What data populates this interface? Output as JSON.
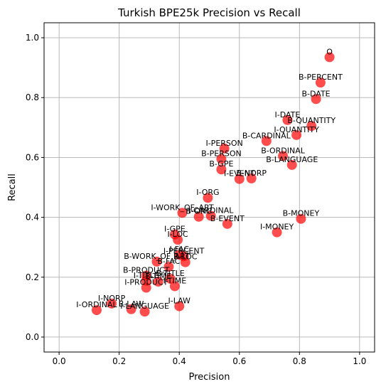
{
  "chart_data": {
    "type": "scatter",
    "title": "Turkish BPE25k Precision vs Recall",
    "xlabel": "Precision",
    "ylabel": "Recall",
    "xlim": [
      -0.05,
      1.05
    ],
    "ylim": [
      -0.05,
      1.05
    ],
    "xticks": [
      "0.0",
      "0.2",
      "0.4",
      "0.6",
      "0.8",
      "1.0"
    ],
    "yticks": [
      "0.0",
      "0.2",
      "0.4",
      "0.6",
      "0.8",
      "1.0"
    ],
    "grid": true,
    "marker_color": "#ff0000",
    "points": [
      {
        "label": "O",
        "x": 0.9,
        "y": 0.935
      },
      {
        "label": "B-PERCENT",
        "x": 0.87,
        "y": 0.85
      },
      {
        "label": "B-DATE",
        "x": 0.855,
        "y": 0.795
      },
      {
        "label": "I-DATE",
        "x": 0.76,
        "y": 0.725
      },
      {
        "label": "B-QUANTITY",
        "x": 0.84,
        "y": 0.705
      },
      {
        "label": "I-QUANTITY",
        "x": 0.79,
        "y": 0.675
      },
      {
        "label": "B-CARDINAL",
        "x": 0.69,
        "y": 0.655
      },
      {
        "label": "I-PERSON",
        "x": 0.55,
        "y": 0.63
      },
      {
        "label": "B-PERSON",
        "x": 0.54,
        "y": 0.595
      },
      {
        "label": "B-ORDINAL",
        "x": 0.745,
        "y": 0.605
      },
      {
        "label": "B-GPE",
        "x": 0.54,
        "y": 0.56
      },
      {
        "label": "B-LANGUAGE",
        "x": 0.775,
        "y": 0.575
      },
      {
        "label": "B-NORP",
        "x": 0.64,
        "y": 0.53
      },
      {
        "label": "I-EVENT",
        "x": 0.6,
        "y": 0.528
      },
      {
        "label": "I-ORG",
        "x": 0.495,
        "y": 0.465
      },
      {
        "label": "I-WORK_OF_ART",
        "x": 0.41,
        "y": 0.415
      },
      {
        "label": "I-CARDINAL",
        "x": 0.505,
        "y": 0.405
      },
      {
        "label": "B-ORG",
        "x": 0.465,
        "y": 0.402
      },
      {
        "label": "B-MONEY",
        "x": 0.805,
        "y": 0.395
      },
      {
        "label": "B-EVENT",
        "x": 0.56,
        "y": 0.378
      },
      {
        "label": "I-MONEY",
        "x": 0.725,
        "y": 0.35
      },
      {
        "label": "I-GPE",
        "x": 0.385,
        "y": 0.343
      },
      {
        "label": "I-LOC",
        "x": 0.395,
        "y": 0.325
      },
      {
        "label": "I-FAC",
        "x": 0.4,
        "y": 0.275
      },
      {
        "label": "I-PERCENT",
        "x": 0.415,
        "y": 0.27
      },
      {
        "label": "B-LOC",
        "x": 0.42,
        "y": 0.25
      },
      {
        "label": "B-WORK_OF_ART",
        "x": 0.325,
        "y": 0.252
      },
      {
        "label": "B-FAC",
        "x": 0.365,
        "y": 0.235
      },
      {
        "label": "B-PRODUCT",
        "x": 0.29,
        "y": 0.205
      },
      {
        "label": "B-TITLE",
        "x": 0.37,
        "y": 0.195
      },
      {
        "label": "I-TITLE",
        "x": 0.29,
        "y": 0.188
      },
      {
        "label": "B-TIME",
        "x": 0.33,
        "y": 0.185
      },
      {
        "label": "I-TIME",
        "x": 0.385,
        "y": 0.17
      },
      {
        "label": "I-PRODUCT",
        "x": 0.29,
        "y": 0.165
      },
      {
        "label": "I-NORP",
        "x": 0.175,
        "y": 0.112
      },
      {
        "label": "I-LAW",
        "x": 0.4,
        "y": 0.103
      },
      {
        "label": "I-ORDINAL",
        "x": 0.125,
        "y": 0.09
      },
      {
        "label": "B-LAW",
        "x": 0.24,
        "y": 0.093
      },
      {
        "label": "I-LANGUAGE",
        "x": 0.285,
        "y": 0.085
      }
    ]
  }
}
